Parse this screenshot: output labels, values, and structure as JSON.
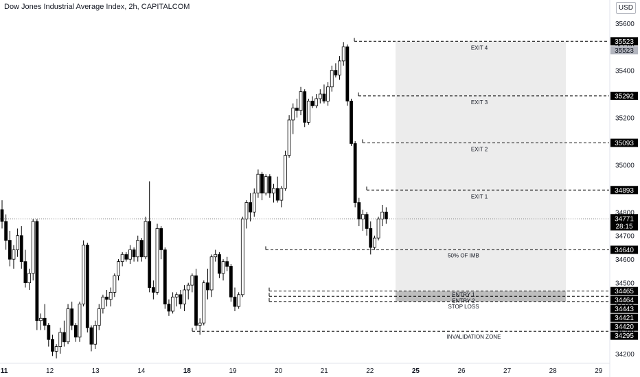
{
  "header": {
    "title": "Dow Jones Industrial Average Index, 2h, CAPITALCOM",
    "currency": "USD"
  },
  "chart_data": {
    "type": "candlestick",
    "y_axis_ticks": [
      34200,
      34300,
      34400,
      34500,
      34600,
      34700,
      34800,
      34900,
      35000,
      35100,
      35200,
      35300,
      35400,
      35500,
      35600
    ],
    "ylim": [
      34165,
      35640
    ],
    "x_axis_ticks": [
      {
        "label": "11",
        "bold": true
      },
      {
        "label": "12",
        "bold": false
      },
      {
        "label": "13",
        "bold": false
      },
      {
        "label": "14",
        "bold": false
      },
      {
        "label": "18",
        "bold": true
      },
      {
        "label": "19",
        "bold": false
      },
      {
        "label": "20",
        "bold": false
      },
      {
        "label": "21",
        "bold": false
      },
      {
        "label": "22",
        "bold": false
      },
      {
        "label": "25",
        "bold": true
      },
      {
        "label": "26",
        "bold": false
      },
      {
        "label": "27",
        "bold": false
      },
      {
        "label": "28",
        "bold": false
      },
      {
        "label": "29",
        "bold": false
      }
    ],
    "candles": [
      [
        34810,
        34850,
        34730,
        34760
      ],
      [
        34760,
        34790,
        34640,
        34680
      ],
      [
        34680,
        34720,
        34570,
        34600
      ],
      [
        34600,
        34660,
        34560,
        34640
      ],
      [
        34640,
        34730,
        34610,
        34700
      ],
      [
        34700,
        34740,
        34560,
        34590
      ],
      [
        34590,
        34640,
        34480,
        34500
      ],
      [
        34500,
        34560,
        34470,
        34540
      ],
      [
        34540,
        34770,
        34510,
        34760
      ],
      [
        34760,
        34770,
        34300,
        34340
      ],
      [
        34340,
        34370,
        34300,
        34350
      ],
      [
        34350,
        34410,
        34300,
        34320
      ],
      [
        34320,
        34330,
        34230,
        34260
      ],
      [
        34260,
        34280,
        34190,
        34210
      ],
      [
        34210,
        34240,
        34180,
        34230
      ],
      [
        34230,
        34310,
        34200,
        34290
      ],
      [
        34290,
        34340,
        34230,
        34250
      ],
      [
        34250,
        34410,
        34240,
        34390
      ],
      [
        34390,
        34420,
        34300,
        34320
      ],
      [
        34320,
        34330,
        34250,
        34270
      ],
      [
        34270,
        34420,
        34250,
        34410
      ],
      [
        34410,
        34680,
        34400,
        34660
      ],
      [
        34660,
        34670,
        34290,
        34310
      ],
      [
        34310,
        34320,
        34210,
        34240
      ],
      [
        34240,
        34340,
        34220,
        34320
      ],
      [
        34320,
        34410,
        34300,
        34390
      ],
      [
        34390,
        34450,
        34370,
        34440
      ],
      [
        34440,
        34470,
        34400,
        34430
      ],
      [
        34430,
        34480,
        34400,
        34460
      ],
      [
        34460,
        34540,
        34440,
        34530
      ],
      [
        34530,
        34600,
        34510,
        34590
      ],
      [
        34590,
        34630,
        34570,
        34620
      ],
      [
        34620,
        34630,
        34590,
        34600
      ],
      [
        34600,
        34660,
        34580,
        34640
      ],
      [
        34640,
        34650,
        34590,
        34610
      ],
      [
        34610,
        34700,
        34590,
        34680
      ],
      [
        34680,
        34690,
        34590,
        34610
      ],
      [
        34610,
        34780,
        34600,
        34760
      ],
      [
        34760,
        34930,
        34460,
        34480
      ],
      [
        34480,
        34510,
        34430,
        34460
      ],
      [
        34460,
        34750,
        34450,
        34730
      ],
      [
        34730,
        34740,
        34600,
        34640
      ],
      [
        34640,
        34650,
        34390,
        34410
      ],
      [
        34410,
        34430,
        34360,
        34380
      ],
      [
        34380,
        34460,
        34370,
        34440
      ],
      [
        34440,
        34460,
        34400,
        34450
      ],
      [
        34450,
        34470,
        34390,
        34410
      ],
      [
        34410,
        34490,
        34380,
        34470
      ],
      [
        34470,
        34500,
        34430,
        34490
      ],
      [
        34490,
        34540,
        34460,
        34530
      ],
      [
        34530,
        34560,
        34300,
        34320
      ],
      [
        34320,
        34350,
        34280,
        34330
      ],
      [
        34330,
        34510,
        34320,
        34500
      ],
      [
        34500,
        34560,
        34430,
        34470
      ],
      [
        34470,
        34620,
        34440,
        34610
      ],
      [
        34610,
        34640,
        34590,
        34620
      ],
      [
        34620,
        34630,
        34520,
        34540
      ],
      [
        34540,
        34600,
        34510,
        34590
      ],
      [
        34590,
        34610,
        34550,
        34570
      ],
      [
        34570,
        34580,
        34420,
        34440
      ],
      [
        34440,
        34480,
        34380,
        34400
      ],
      [
        34400,
        34460,
        34390,
        34450
      ],
      [
        34450,
        34780,
        34440,
        34770
      ],
      [
        34770,
        34850,
        34730,
        34840
      ],
      [
        34840,
        34880,
        34760,
        34800
      ],
      [
        34800,
        34900,
        34780,
        34880
      ],
      [
        34880,
        34980,
        34860,
        34960
      ],
      [
        34960,
        34970,
        34850,
        34880
      ],
      [
        34880,
        34960,
        34870,
        34950
      ],
      [
        34950,
        34960,
        34860,
        34880
      ],
      [
        34880,
        34920,
        34840,
        34900
      ],
      [
        34900,
        34950,
        34840,
        34850
      ],
      [
        34850,
        34910,
        34820,
        34900
      ],
      [
        34900,
        35060,
        34890,
        35040
      ],
      [
        35040,
        35210,
        35030,
        35190
      ],
      [
        35190,
        35260,
        35130,
        35240
      ],
      [
        35240,
        35280,
        35200,
        35230
      ],
      [
        35230,
        35330,
        35210,
        35310
      ],
      [
        35310,
        35320,
        35160,
        35180
      ],
      [
        35180,
        35280,
        35170,
        35270
      ],
      [
        35270,
        35290,
        35240,
        35250
      ],
      [
        35250,
        35300,
        35240,
        35280
      ],
      [
        35280,
        35320,
        35260,
        35300
      ],
      [
        35300,
        35340,
        35260,
        35270
      ],
      [
        35270,
        35350,
        35250,
        35330
      ],
      [
        35330,
        35420,
        35310,
        35400
      ],
      [
        35400,
        35430,
        35370,
        35380
      ],
      [
        35380,
        35460,
        35360,
        35440
      ],
      [
        35440,
        35520,
        35420,
        35500
      ],
      [
        35500,
        35510,
        35250,
        35270
      ],
      [
        35270,
        35280,
        35080,
        35090
      ],
      [
        35090,
        35100,
        34820,
        34840
      ],
      [
        34840,
        34860,
        34740,
        34770
      ],
      [
        34770,
        34810,
        34720,
        34790
      ],
      [
        34790,
        34800,
        34700,
        34730
      ],
      [
        34730,
        34760,
        34620,
        34650
      ],
      [
        34650,
        34700,
        34640,
        34690
      ],
      [
        34690,
        34780,
        34680,
        34770
      ],
      [
        34770,
        34830,
        34740,
        34800
      ],
      [
        34800,
        34820,
        34750,
        34771
      ]
    ],
    "current_price": {
      "value": "34771",
      "countdown": "28:15"
    },
    "levels": [
      {
        "name": "EXIT 4",
        "value": 35523
      },
      {
        "name": "EXIT 3",
        "value": 35292
      },
      {
        "name": "EXIT 2",
        "value": 35093
      },
      {
        "name": "EXIT 1",
        "value": 34893
      },
      {
        "name": "50% OF IMB",
        "value": 34640
      },
      {
        "name": "ENTRY 1",
        "value": 34465
      },
      {
        "name": "ENTRY 2",
        "value": 34443
      },
      {
        "name": "STOP LOSS",
        "value": 34421
      },
      {
        "name": "INVALIDATION ZONE",
        "value": 34295
      }
    ],
    "axis_badges": [
      {
        "text": "35523",
        "value": 35523,
        "style": "dark"
      },
      {
        "text": "35523",
        "value": 35523,
        "style": "gray"
      },
      {
        "text": "35292",
        "value": 35292,
        "style": "dark"
      },
      {
        "text": "35093",
        "value": 35093,
        "style": "dark"
      },
      {
        "text": "34893",
        "value": 34893,
        "style": "dark"
      },
      {
        "text": "34640",
        "value": 34640,
        "style": "dark"
      },
      {
        "text": "34465",
        "value": 34465,
        "style": "dark"
      },
      {
        "text": "34464",
        "value": 34464,
        "style": "dark"
      },
      {
        "text": "34443",
        "value": 34443,
        "style": "dark"
      },
      {
        "text": "34421",
        "value": 34421,
        "style": "dark"
      },
      {
        "text": "34420",
        "value": 34420,
        "style": "dark"
      },
      {
        "text": "34295",
        "value": 34295,
        "style": "dark"
      }
    ],
    "zones": [
      {
        "name": "target-zone",
        "from": 34465,
        "to": 35523,
        "color": "#ececec"
      },
      {
        "name": "entry-zone",
        "from": 34421,
        "to": 34465,
        "color": "#bdbdbd"
      }
    ],
    "colors": {
      "up": "#ffffff",
      "down": "#000000",
      "wick": "#000000",
      "axis_text": "#131722",
      "badge_dark": "#000000",
      "badge_gray": "#b2b5be"
    }
  }
}
